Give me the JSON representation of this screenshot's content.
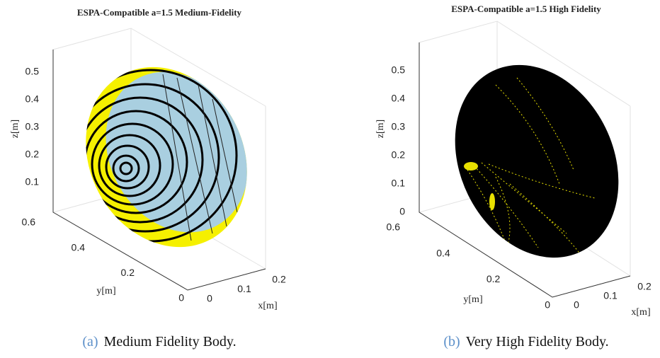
{
  "figures": [
    {
      "title": "ESPA-Compatible a=1.5 Medium-Fidelity",
      "z_label": "z[m]",
      "y_label": "y[m]",
      "x_label": "x[m]",
      "z_ticks": [
        0.1,
        0.2,
        0.3,
        0.4,
        0.5
      ],
      "y_ticks": [
        0,
        0.2,
        0.4,
        0.6
      ],
      "x_ticks": [
        0,
        0.1,
        0.2
      ],
      "caption_label": "(a)",
      "caption_text": "Medium Fidelity Body."
    },
    {
      "title": "ESPA-Compatible a=1.5 High Fidelity",
      "z_label": "z[m]",
      "y_label": "y[m]",
      "x_label": "x[m]",
      "z_ticks": [
        0,
        0.1,
        0.2,
        0.3,
        0.4,
        0.5
      ],
      "y_ticks": [
        0,
        0.2,
        0.4,
        0.6
      ],
      "x_ticks": [
        0,
        0.1,
        0.2
      ],
      "caption_label": "(b)",
      "caption_text": "Very High Fidelity Body."
    }
  ]
}
